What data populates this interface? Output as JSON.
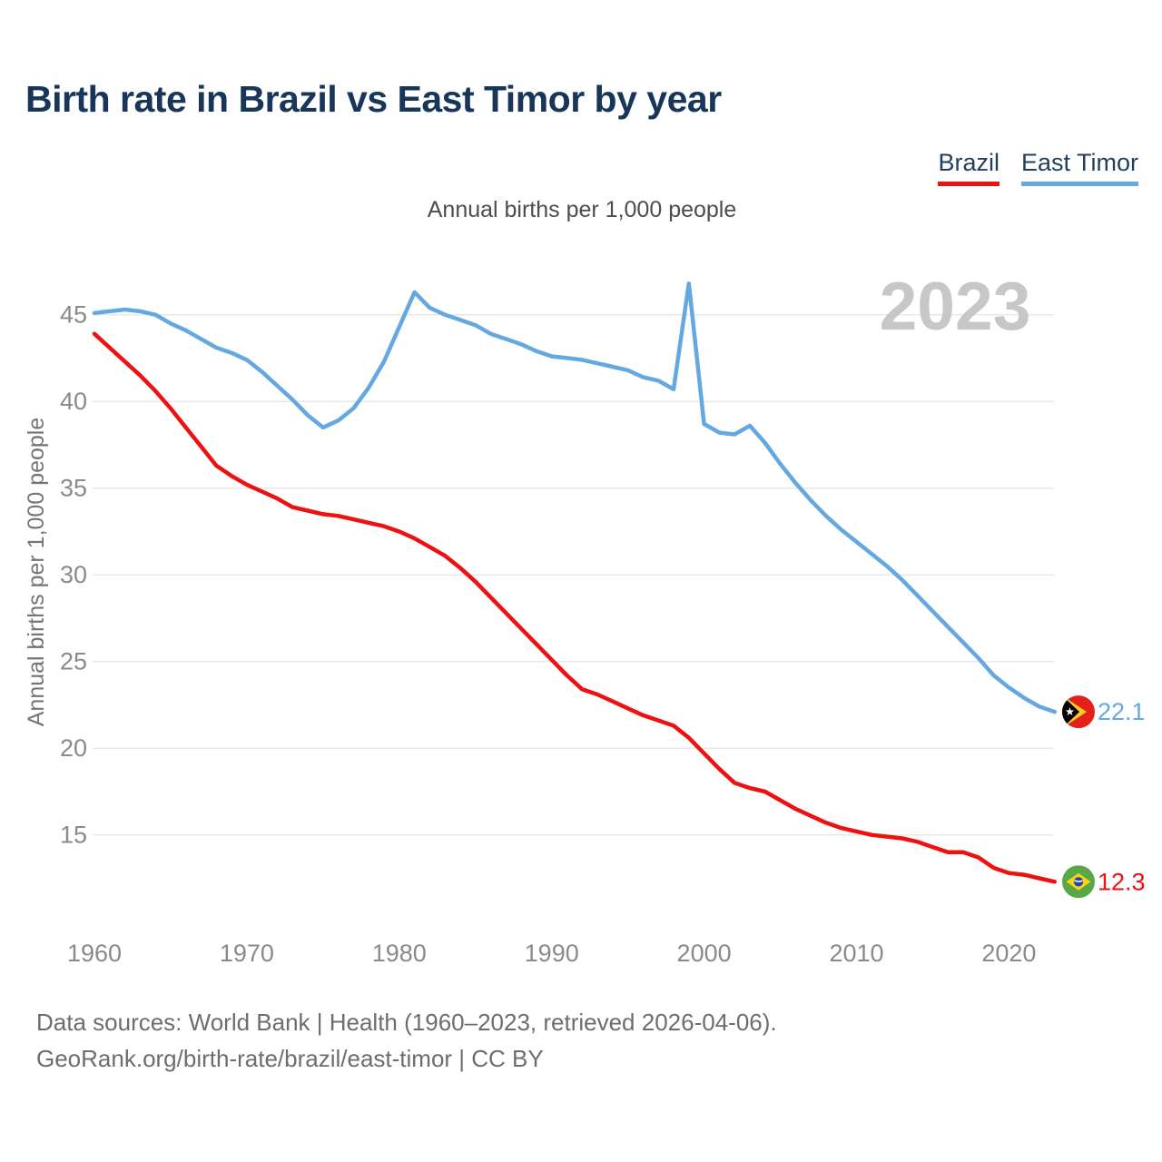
{
  "title": "Birth rate in Brazil vs East Timor by year",
  "subtitle": "Annual births per 1,000 people",
  "y_axis_title": "Annual births per 1,000 people",
  "watermark_year": "2023",
  "legend": {
    "brazil_label": "Brazil",
    "east_timor_label": "East Timor"
  },
  "footer": {
    "line1": "Data sources: World Bank | Health (1960–2023, retrieved 2026-04-06).",
    "line2": "GeoRank.org/birth-rate/brazil/east-timor | CC BY"
  },
  "colors": {
    "brazil": "#ee1111",
    "east_timor": "#64a8e2",
    "title_navy": "#18365a",
    "gridline": "#e8e8e8",
    "tick_text": "#8a8a8a",
    "watermark": "#c7c7c7"
  },
  "chart_data": {
    "type": "line",
    "title": "Birth rate in Brazil vs East Timor by year",
    "xlabel": "",
    "ylabel": "Annual births per 1,000 people",
    "grid": "horizontal",
    "legend_position": "top-right",
    "xlim": [
      1960,
      2023
    ],
    "ylim": [
      12,
      47.5
    ],
    "xticks": [
      1960,
      1970,
      1980,
      1990,
      2000,
      2010,
      2020
    ],
    "yticks": [
      45,
      40,
      35,
      30,
      25,
      20,
      15
    ],
    "x": [
      1960,
      1961,
      1962,
      1963,
      1964,
      1965,
      1966,
      1967,
      1968,
      1969,
      1970,
      1971,
      1972,
      1973,
      1974,
      1975,
      1976,
      1977,
      1978,
      1979,
      1980,
      1981,
      1982,
      1983,
      1984,
      1985,
      1986,
      1987,
      1988,
      1989,
      1990,
      1991,
      1992,
      1993,
      1994,
      1995,
      1996,
      1997,
      1998,
      1999,
      2000,
      2001,
      2002,
      2003,
      2004,
      2005,
      2006,
      2007,
      2008,
      2009,
      2010,
      2011,
      2012,
      2013,
      2014,
      2015,
      2016,
      2017,
      2018,
      2019,
      2020,
      2021,
      2022,
      2023
    ],
    "series": [
      {
        "name": "East Timor",
        "color": "#64a8e2",
        "end_label": "22.1",
        "flag": "east-timor-flag",
        "values": [
          45.1,
          45.2,
          45.3,
          45.2,
          45.0,
          44.5,
          44.1,
          43.6,
          43.1,
          42.8,
          42.4,
          41.7,
          40.9,
          40.1,
          39.2,
          38.5,
          38.9,
          39.6,
          40.8,
          42.3,
          44.3,
          46.3,
          45.4,
          45.0,
          44.7,
          44.4,
          43.9,
          43.6,
          43.3,
          42.9,
          42.6,
          42.5,
          42.4,
          42.2,
          42.0,
          41.8,
          41.4,
          41.2,
          40.7,
          46.8,
          38.7,
          38.2,
          38.1,
          38.6,
          37.6,
          36.4,
          35.3,
          34.3,
          33.4,
          32.6,
          31.9,
          31.2,
          30.5,
          29.7,
          28.8,
          27.9,
          27.0,
          26.1,
          25.2,
          24.2,
          23.5,
          22.9,
          22.4,
          22.1
        ]
      },
      {
        "name": "Brazil",
        "color": "#ee1111",
        "end_label": "12.3",
        "flag": "brazil-flag",
        "values": [
          43.9,
          43.1,
          42.3,
          41.5,
          40.6,
          39.6,
          38.5,
          37.4,
          36.3,
          35.7,
          35.2,
          34.8,
          34.4,
          33.9,
          33.7,
          33.5,
          33.4,
          33.2,
          33.0,
          32.8,
          32.5,
          32.1,
          31.6,
          31.1,
          30.4,
          29.6,
          28.7,
          27.8,
          26.9,
          26.0,
          25.1,
          24.2,
          23.4,
          23.1,
          22.7,
          22.3,
          21.9,
          21.6,
          21.3,
          20.6,
          19.7,
          18.8,
          18.0,
          17.7,
          17.5,
          17.0,
          16.5,
          16.1,
          15.7,
          15.4,
          15.2,
          15.0,
          14.9,
          14.8,
          14.6,
          14.3,
          14.0,
          14.0,
          13.7,
          13.1,
          12.8,
          12.7,
          12.5,
          12.3
        ]
      }
    ]
  }
}
